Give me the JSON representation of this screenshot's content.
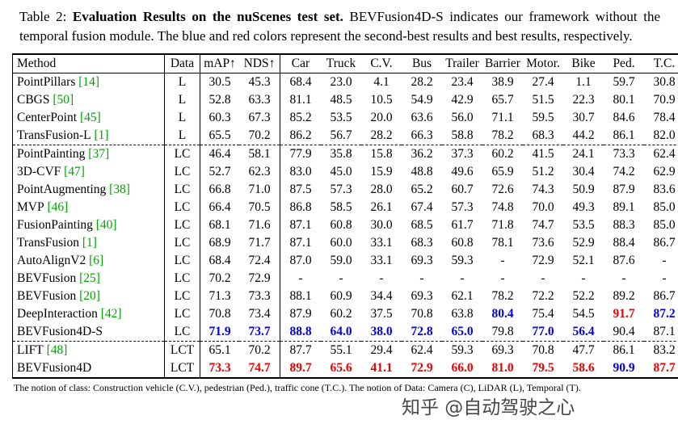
{
  "caption": {
    "prefix": "Table 2: ",
    "bold_title": "Evaluation Results on the nuScenes test set.",
    "rest": " BEVFusion4D-S indicates our framework without the temporal fusion module. The blue and red colors represent the second-best results and best results, respectively."
  },
  "colors": {
    "citation_green": "#00a400",
    "second_best_blue": "#0000f0",
    "best_red": "#f00000"
  },
  "table": {
    "header": {
      "method": "Method",
      "data": "Data",
      "map": "mAP↑",
      "nds": "NDS↑",
      "classes": [
        "Car",
        "Truck",
        "C.V.",
        "Bus",
        "Trailer",
        "Barrier",
        "Motor.",
        "Bike",
        "Ped.",
        "T.C."
      ]
    },
    "rows": [
      {
        "method": "PointPillars",
        "cite": "[14]",
        "data": "L",
        "cells": [
          "30.5",
          "45.3",
          "68.4",
          "23.0",
          "4.1",
          "28.2",
          "23.4",
          "38.9",
          "27.4",
          "1.1",
          "59.7",
          "30.8"
        ],
        "hl": {}
      },
      {
        "method": "CBGS",
        "cite": "[50]",
        "data": "L",
        "cells": [
          "52.8",
          "63.3",
          "81.1",
          "48.5",
          "10.5",
          "54.9",
          "42.9",
          "65.7",
          "51.5",
          "22.3",
          "80.1",
          "70.9"
        ],
        "hl": {}
      },
      {
        "method": "CenterPoint",
        "cite": "[45]",
        "data": "L",
        "cells": [
          "60.3",
          "67.3",
          "85.2",
          "53.5",
          "20.0",
          "63.6",
          "56.0",
          "71.1",
          "59.5",
          "30.7",
          "84.6",
          "78.4"
        ],
        "hl": {}
      },
      {
        "method": "TransFusion-L",
        "cite": "[1]",
        "data": "L",
        "cells": [
          "65.5",
          "70.2",
          "86.2",
          "56.7",
          "28.2",
          "66.3",
          "58.8",
          "78.2",
          "68.3",
          "44.2",
          "86.1",
          "82.0"
        ],
        "hl": {},
        "dash_below": true
      },
      {
        "method": "PointPainting",
        "cite": "[37]",
        "data": "LC",
        "cells": [
          "46.4",
          "58.1",
          "77.9",
          "35.8",
          "15.8",
          "36.2",
          "37.3",
          "60.2",
          "41.5",
          "24.1",
          "73.3",
          "62.4"
        ],
        "hl": {}
      },
      {
        "method": "3D-CVF",
        "cite": "[47]",
        "data": "LC",
        "cells": [
          "52.7",
          "62.3",
          "83.0",
          "45.0",
          "15.9",
          "48.8",
          "49.6",
          "65.9",
          "51.2",
          "30.4",
          "74.2",
          "62.9"
        ],
        "hl": {}
      },
      {
        "method": "PointAugmenting",
        "cite": "[38]",
        "data": "LC",
        "cells": [
          "66.8",
          "71.0",
          "87.5",
          "57.3",
          "28.0",
          "65.2",
          "60.7",
          "72.6",
          "74.3",
          "50.9",
          "87.9",
          "83.6"
        ],
        "hl": {}
      },
      {
        "method": "MVP",
        "cite": "[46]",
        "data": "LC",
        "cells": [
          "66.4",
          "70.5",
          "86.8",
          "58.5",
          "26.1",
          "67.4",
          "57.3",
          "74.8",
          "70.0",
          "49.3",
          "89.1",
          "85.0"
        ],
        "hl": {}
      },
      {
        "method": "FusionPainting",
        "cite": "[40]",
        "data": "LC",
        "cells": [
          "68.1",
          "71.6",
          "87.1",
          "60.8",
          "30.0",
          "68.5",
          "61.7",
          "71.8",
          "74.7",
          "53.5",
          "88.3",
          "85.0"
        ],
        "hl": {}
      },
      {
        "method": "TransFusion",
        "cite": "[1]",
        "data": "LC",
        "cells": [
          "68.9",
          "71.7",
          "87.1",
          "60.0",
          "33.1",
          "68.3",
          "60.8",
          "78.1",
          "73.6",
          "52.9",
          "88.4",
          "86.7"
        ],
        "hl": {}
      },
      {
        "method": "AutoAlignV2",
        "cite": "[6]",
        "data": "LC",
        "cells": [
          "68.4",
          "72.4",
          "87.0",
          "59.0",
          "33.1",
          "69.3",
          "59.3",
          "-",
          "72.9",
          "52.1",
          "87.6",
          "-"
        ],
        "hl": {}
      },
      {
        "method": "BEVFusion",
        "cite": "[25]",
        "data": "LC",
        "cells": [
          "70.2",
          "72.9",
          "-",
          "-",
          "-",
          "-",
          "-",
          "-",
          "-",
          "-",
          "-",
          "-"
        ],
        "hl": {}
      },
      {
        "method": "BEVFusion",
        "cite": "[20]",
        "data": "LC",
        "cells": [
          "71.3",
          "73.3",
          "88.1",
          "60.9",
          "34.4",
          "69.3",
          "62.1",
          "78.2",
          "72.2",
          "52.2",
          "89.2",
          "86.7"
        ],
        "hl": {}
      },
      {
        "method": "DeepInteraction",
        "cite": "[42]",
        "data": "LC",
        "cells": [
          "70.8",
          "73.4",
          "87.9",
          "60.2",
          "37.5",
          "70.8",
          "63.8",
          "80.4",
          "75.4",
          "54.5",
          "91.7",
          "87.2"
        ],
        "hl": {
          "7": "blue",
          "10": "red",
          "11": "blue"
        }
      },
      {
        "method": "BEVFusion4D-S",
        "cite": "",
        "data": "LC",
        "cells": [
          "71.9",
          "73.7",
          "88.8",
          "64.0",
          "38.0",
          "72.8",
          "65.0",
          "79.8",
          "77.0",
          "56.4",
          "90.4",
          "87.1"
        ],
        "hl": {
          "0": "blue",
          "1": "blue",
          "2": "blue",
          "3": "blue",
          "4": "blue",
          "5": "blue",
          "6": "blue",
          "8": "blue",
          "9": "blue"
        },
        "dash_below": true
      },
      {
        "method": "LIFT",
        "cite": "[48]",
        "data": "LCT",
        "cells": [
          "65.1",
          "70.2",
          "87.7",
          "55.1",
          "29.4",
          "62.4",
          "59.3",
          "69.3",
          "70.8",
          "47.7",
          "86.1",
          "83.2"
        ],
        "hl": {}
      },
      {
        "method": "BEVFusion4D",
        "cite": "",
        "data": "LCT",
        "cells": [
          "73.3",
          "74.7",
          "89.7",
          "65.6",
          "41.1",
          "72.9",
          "66.0",
          "81.0",
          "79.5",
          "58.6",
          "90.9",
          "87.7"
        ],
        "hl": {
          "0": "red",
          "1": "red",
          "2": "red",
          "3": "red",
          "4": "red",
          "5": "red",
          "6": "red",
          "7": "red",
          "8": "red",
          "9": "red",
          "10": "blue",
          "11": "red"
        }
      }
    ]
  },
  "footnote": "The notion of class: Construction vehicle (C.V.), pedestrian (Ped.), traffic cone (T.C.). The notion of Data: Camera (C), LiDAR (L), Temporal (T).",
  "watermark": "知乎 @自动驾驶之心"
}
